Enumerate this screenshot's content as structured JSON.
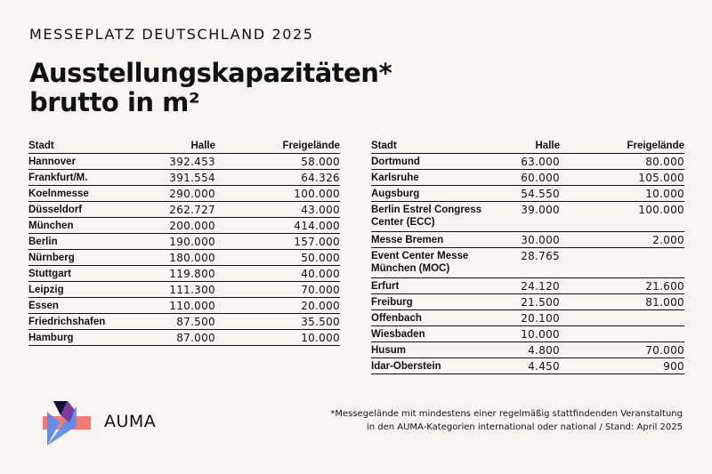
{
  "header": {
    "kicker": "MESSEPLATZ DEUTSCHLAND 2025",
    "title_line1": "Ausstellungskapazitäten*",
    "title_line2": "brutto in m²"
  },
  "table_left": {
    "headers": {
      "city": "Stadt",
      "hall": "Halle",
      "outdoor": "Freigelände"
    },
    "rows": [
      {
        "city": "Hannover",
        "hall": "392.453",
        "outdoor": "58.000"
      },
      {
        "city": "Frankfurt/M.",
        "hall": "391.554",
        "outdoor": "64.326"
      },
      {
        "city": "Koelnmesse",
        "hall": "290.000",
        "outdoor": "100.000"
      },
      {
        "city": "Düsseldorf",
        "hall": "262.727",
        "outdoor": "43.000"
      },
      {
        "city": "München",
        "hall": "200.000",
        "outdoor": "414.000"
      },
      {
        "city": "Berlin",
        "hall": "190.000",
        "outdoor": "157.000"
      },
      {
        "city": "Nürnberg",
        "hall": "180.000",
        "outdoor": "50.000"
      },
      {
        "city": "Stuttgart",
        "hall": "119.800",
        "outdoor": "40.000"
      },
      {
        "city": "Leipzig",
        "hall": "111.300",
        "outdoor": "70.000"
      },
      {
        "city": "Essen",
        "hall": "110.000",
        "outdoor": "20.000"
      },
      {
        "city": "Friedrichshafen",
        "hall": "87.500",
        "outdoor": "35.500"
      },
      {
        "city": "Hamburg",
        "hall": "87.000",
        "outdoor": "10.000"
      }
    ]
  },
  "table_right": {
    "headers": {
      "city": "Stadt",
      "hall": "Halle",
      "outdoor": "Freigelände"
    },
    "rows": [
      {
        "city": "Dortmund",
        "hall": "63.000",
        "outdoor": "80.000"
      },
      {
        "city": "Karlsruhe",
        "hall": "60.000",
        "outdoor": "105.000"
      },
      {
        "city": "Augsburg",
        "hall": "54.550",
        "outdoor": "10.000"
      },
      {
        "city_line1": "Berlin Estrel Congress",
        "city_line2": "Center (ECC)",
        "hall": "39.000",
        "outdoor": "100.000"
      },
      {
        "city": "Messe Bremen",
        "hall": "30.000",
        "outdoor": "2.000"
      },
      {
        "city_line1": "Event Center Messe",
        "city_line2": "München (MOC)",
        "hall": "28.765",
        "outdoor": ""
      },
      {
        "city": "Erfurt",
        "hall": "24.120",
        "outdoor": "21.600"
      },
      {
        "city": "Freiburg",
        "hall": "21.500",
        "outdoor": "81.000"
      },
      {
        "city": "Offenbach",
        "hall": "20.100",
        "outdoor": ""
      },
      {
        "city": "Wiesbaden",
        "hall": "10.000",
        "outdoor": ""
      },
      {
        "city": "Husum",
        "hall": "4.800",
        "outdoor": "70.000"
      },
      {
        "city": "Idar-Oberstein",
        "hall": "4.450",
        "outdoor": "900"
      }
    ]
  },
  "brand": {
    "name": "AUMA",
    "logo_icon": "auma-logo-icon",
    "colors": {
      "coral": "#f47b72",
      "blue": "#5b8ef0",
      "purple": "#7a3aa6",
      "navy": "#15133a"
    }
  },
  "footnote": {
    "line1": "*Messegelände mit mindestens einer regelmäßig stattfindenden Veranstaltung",
    "line2": "in den AUMA-Kategorien international oder national / Stand: April 2025"
  }
}
